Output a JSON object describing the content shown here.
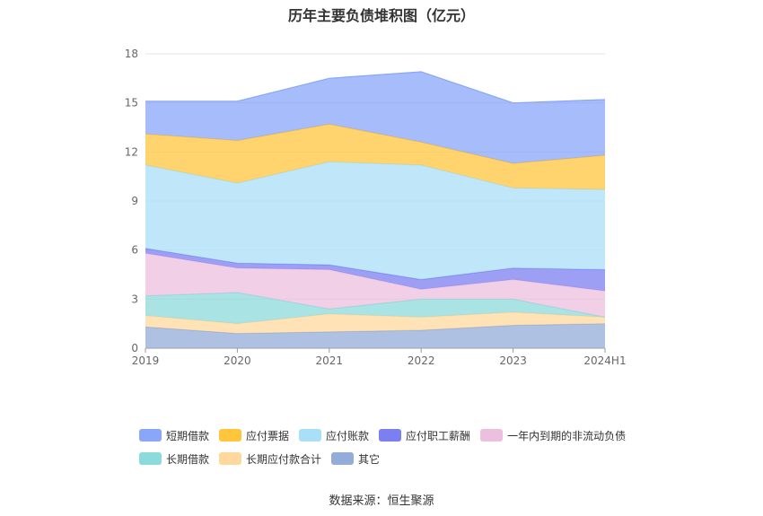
{
  "title": "历年主要负债堆积图（亿元）",
  "source_text": "数据来源：恒生聚源",
  "chart_data": {
    "type": "area",
    "stacked": true,
    "title": "历年主要负债堆积图（亿元）",
    "xlabel": "",
    "ylabel": "",
    "categories": [
      "2019",
      "2020",
      "2021",
      "2022",
      "2023",
      "2024H1"
    ],
    "y_ticks": [
      "0",
      "3",
      "6",
      "9",
      "12",
      "15",
      "18"
    ],
    "ylim": [
      0,
      18
    ],
    "grid": true,
    "legend_position": "bottom",
    "series": [
      {
        "name": "其它",
        "color": "#93acd8",
        "values": [
          1.3,
          0.9,
          1.0,
          1.1,
          1.4,
          1.5
        ]
      },
      {
        "name": "长期应付款合计",
        "color": "#ffd89e",
        "values": [
          0.7,
          0.6,
          1.1,
          0.8,
          0.8,
          0.4
        ]
      },
      {
        "name": "长期借款",
        "color": "#8ddadb",
        "values": [
          1.2,
          1.9,
          0.3,
          1.1,
          0.8,
          0.0
        ]
      },
      {
        "name": "一年内到期的非流动负债",
        "color": "#ecbfdf",
        "values": [
          2.6,
          1.5,
          2.4,
          0.6,
          1.2,
          1.6
        ]
      },
      {
        "name": "应付职工薪酬",
        "color": "#7b7ff0",
        "values": [
          0.3,
          0.3,
          0.3,
          0.6,
          0.7,
          1.3
        ]
      },
      {
        "name": "应付账款",
        "color": "#a9dff7",
        "values": [
          5.1,
          4.9,
          6.3,
          7.0,
          4.9,
          4.9
        ]
      },
      {
        "name": "应付票据",
        "color": "#ffc53d",
        "values": [
          1.9,
          2.6,
          2.3,
          1.4,
          1.5,
          2.1
        ]
      },
      {
        "name": "短期借款",
        "color": "#89a6f8",
        "values": [
          2.0,
          2.4,
          2.8,
          4.3,
          3.7,
          3.4
        ]
      }
    ]
  },
  "legend_rows": [
    [
      {
        "label": "短期借款",
        "color": "#89a6f8"
      },
      {
        "label": "应付票据",
        "color": "#ffc53d"
      },
      {
        "label": "应付账款",
        "color": "#a9dff7"
      },
      {
        "label": "应付职工薪酬",
        "color": "#7b7ff0"
      },
      {
        "label": "一年内到期的非流动负债",
        "color": "#ecbfdf"
      }
    ],
    [
      {
        "label": "长期借款",
        "color": "#8ddadb"
      },
      {
        "label": "长期应付款合计",
        "color": "#ffd89e"
      },
      {
        "label": "其它",
        "color": "#93acd8"
      }
    ]
  ]
}
